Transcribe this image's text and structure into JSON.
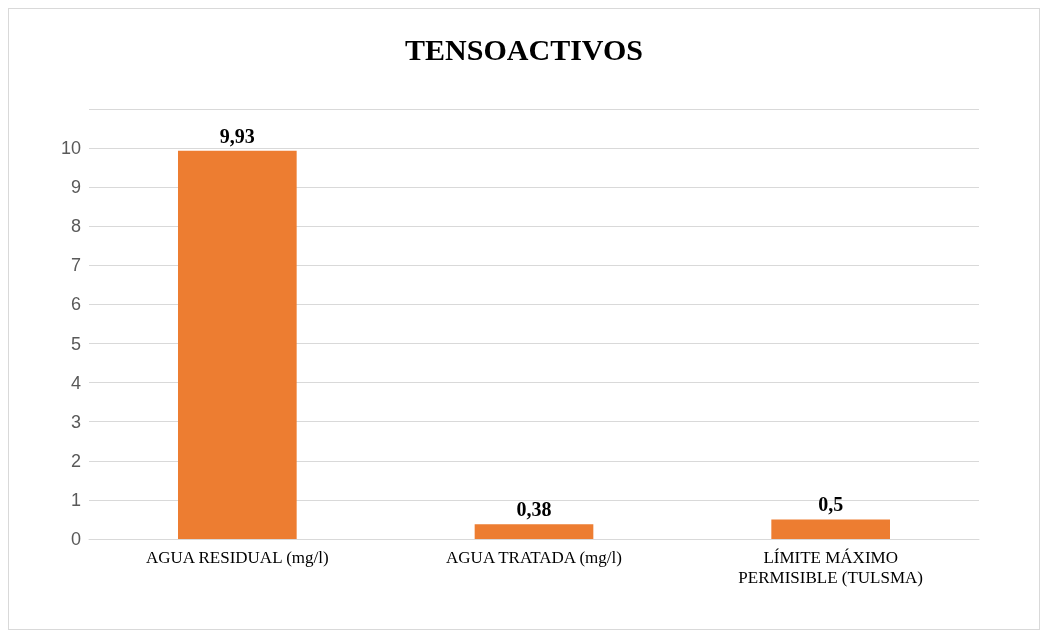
{
  "chart_data": {
    "type": "bar",
    "title": "TENSOACTIVOS",
    "categories": [
      "AGUA RESIDUAL (mg/l)",
      "AGUA TRATADA (mg/l)",
      "LÍMITE MÁXIMO\nPERMISIBLE (TULSMA)"
    ],
    "values": [
      9.93,
      0.38,
      0.5
    ],
    "value_labels": [
      "9,93",
      "0,38",
      "0,5"
    ],
    "color": "#ed7d31",
    "ylim": [
      0,
      11
    ],
    "yticks": [
      0,
      1,
      2,
      3,
      4,
      5,
      6,
      7,
      8,
      9,
      10,
      {
        "value": 11,
        "label": null
      }
    ],
    "grid": "y"
  }
}
